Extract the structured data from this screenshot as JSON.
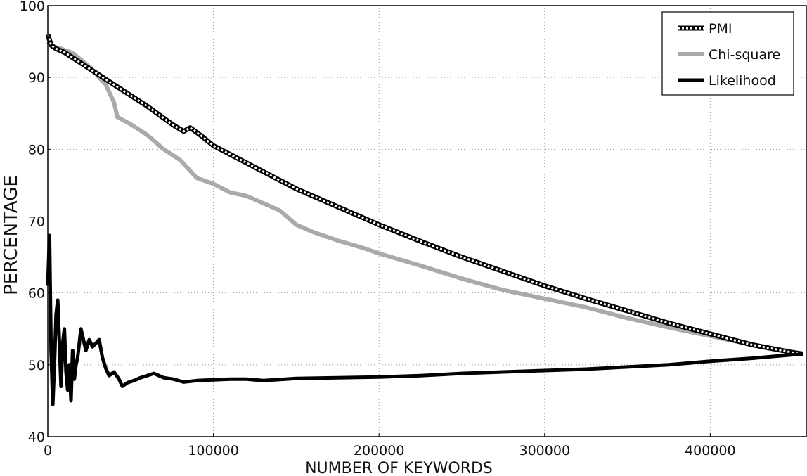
{
  "chart_data": {
    "type": "line",
    "xlabel": "NUMBER OF KEYWORDS",
    "ylabel": "PERCENTAGE",
    "xlim": [
      0,
      458000
    ],
    "ylim": [
      40,
      100
    ],
    "xticks": [
      0,
      100000,
      200000,
      300000,
      400000
    ],
    "xtick_labels": [
      "0",
      "100000",
      "200000",
      "300000",
      "400000"
    ],
    "yticks": [
      40,
      50,
      60,
      70,
      80,
      90,
      100
    ],
    "ytick_labels": [
      "40",
      "50",
      "60",
      "70",
      "80",
      "90",
      "100"
    ],
    "grid": true,
    "legend_position": "top-right",
    "series": [
      {
        "name": "PMI",
        "style": "dashed-black-white",
        "color": "#000000",
        "points": [
          [
            0,
            96
          ],
          [
            2000,
            94.5
          ],
          [
            5000,
            94
          ],
          [
            10000,
            93.5
          ],
          [
            20000,
            92
          ],
          [
            40000,
            89
          ],
          [
            60000,
            86
          ],
          [
            75000,
            83.5
          ],
          [
            82000,
            82.5
          ],
          [
            86000,
            83
          ],
          [
            92000,
            82
          ],
          [
            100000,
            80.5
          ],
          [
            125000,
            77.5
          ],
          [
            150000,
            74.5
          ],
          [
            175000,
            72
          ],
          [
            200000,
            69.5
          ],
          [
            225000,
            67.2
          ],
          [
            250000,
            65
          ],
          [
            275000,
            63
          ],
          [
            300000,
            61
          ],
          [
            325000,
            59.2
          ],
          [
            350000,
            57.5
          ],
          [
            375000,
            55.8
          ],
          [
            400000,
            54.3
          ],
          [
            425000,
            52.8
          ],
          [
            450000,
            51.7
          ],
          [
            456000,
            51.5
          ]
        ]
      },
      {
        "name": "Chi-square",
        "style": "solid-gray",
        "color": "#aaaaaa",
        "points": [
          [
            0,
            95
          ],
          [
            3000,
            94.3
          ],
          [
            8000,
            94
          ],
          [
            15000,
            93.4
          ],
          [
            25000,
            91.5
          ],
          [
            35000,
            89
          ],
          [
            40000,
            86.5
          ],
          [
            42000,
            84.5
          ],
          [
            50000,
            83.5
          ],
          [
            60000,
            82
          ],
          [
            70000,
            80
          ],
          [
            80000,
            78.5
          ],
          [
            90000,
            76
          ],
          [
            100000,
            75.2
          ],
          [
            110000,
            74
          ],
          [
            120000,
            73.5
          ],
          [
            130000,
            72.5
          ],
          [
            140000,
            71.5
          ],
          [
            150000,
            69.5
          ],
          [
            160000,
            68.5
          ],
          [
            175000,
            67.3
          ],
          [
            190000,
            66.3
          ],
          [
            200000,
            65.5
          ],
          [
            225000,
            63.8
          ],
          [
            250000,
            62
          ],
          [
            275000,
            60.4
          ],
          [
            300000,
            59.2
          ],
          [
            325000,
            58
          ],
          [
            350000,
            56.5
          ],
          [
            375000,
            55.2
          ],
          [
            400000,
            54
          ],
          [
            425000,
            52.8
          ],
          [
            450000,
            51.8
          ],
          [
            456000,
            51.5
          ]
        ]
      },
      {
        "name": "Likelihood",
        "style": "solid-black",
        "color": "#000000",
        "points": [
          [
            0,
            61
          ],
          [
            1000,
            68
          ],
          [
            2000,
            52
          ],
          [
            3000,
            44.5
          ],
          [
            4000,
            50
          ],
          [
            5000,
            57
          ],
          [
            6000,
            59
          ],
          [
            7000,
            53
          ],
          [
            8000,
            47
          ],
          [
            9000,
            53
          ],
          [
            10000,
            55
          ],
          [
            11000,
            49
          ],
          [
            12000,
            46.5
          ],
          [
            13000,
            50
          ],
          [
            14000,
            45
          ],
          [
            15000,
            52
          ],
          [
            16000,
            48
          ],
          [
            17000,
            50
          ],
          [
            18000,
            51
          ],
          [
            19000,
            53
          ],
          [
            20000,
            55
          ],
          [
            21000,
            54
          ],
          [
            23000,
            52
          ],
          [
            25000,
            53.5
          ],
          [
            27000,
            52.5
          ],
          [
            29000,
            53
          ],
          [
            31000,
            53.5
          ],
          [
            33000,
            51
          ],
          [
            35000,
            49.5
          ],
          [
            37000,
            48.5
          ],
          [
            40000,
            49
          ],
          [
            43000,
            48
          ],
          [
            45000,
            47
          ],
          [
            48000,
            47.5
          ],
          [
            52000,
            47.8
          ],
          [
            56000,
            48.2
          ],
          [
            60000,
            48.5
          ],
          [
            64000,
            48.8
          ],
          [
            70000,
            48.2
          ],
          [
            76000,
            48
          ],
          [
            82000,
            47.6
          ],
          [
            90000,
            47.8
          ],
          [
            100000,
            47.9
          ],
          [
            110000,
            48
          ],
          [
            120000,
            48
          ],
          [
            130000,
            47.8
          ],
          [
            150000,
            48.1
          ],
          [
            175000,
            48.2
          ],
          [
            200000,
            48.3
          ],
          [
            225000,
            48.5
          ],
          [
            250000,
            48.8
          ],
          [
            275000,
            49
          ],
          [
            300000,
            49.2
          ],
          [
            325000,
            49.4
          ],
          [
            350000,
            49.7
          ],
          [
            375000,
            50
          ],
          [
            400000,
            50.5
          ],
          [
            425000,
            50.9
          ],
          [
            450000,
            51.4
          ],
          [
            456000,
            51.5
          ]
        ]
      }
    ]
  }
}
